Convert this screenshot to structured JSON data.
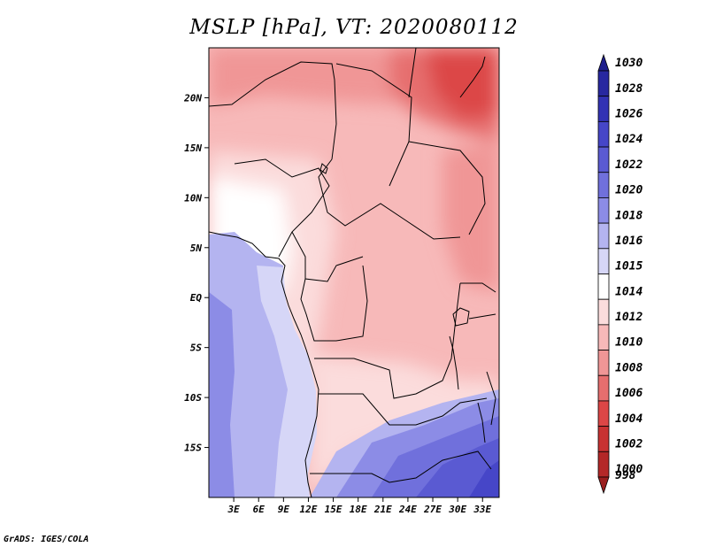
{
  "title": "MSLP [hPa], VT: 2020080112",
  "credit": "GrADS: IGES/COLA",
  "map": {
    "lon_range": [
      0,
      35
    ],
    "lat_range": [
      -20,
      25
    ],
    "x_ticks": [
      {
        "lon": 3,
        "label": "3E"
      },
      {
        "lon": 6,
        "label": "6E"
      },
      {
        "lon": 9,
        "label": "9E"
      },
      {
        "lon": 12,
        "label": "12E"
      },
      {
        "lon": 15,
        "label": "15E"
      },
      {
        "lon": 18,
        "label": "18E"
      },
      {
        "lon": 21,
        "label": "21E"
      },
      {
        "lon": 24,
        "label": "24E"
      },
      {
        "lon": 27,
        "label": "27E"
      },
      {
        "lon": 30,
        "label": "30E"
      },
      {
        "lon": 33,
        "label": "33E"
      }
    ],
    "y_ticks": [
      {
        "lat": 20,
        "label": "20N"
      },
      {
        "lat": 15,
        "label": "15N"
      },
      {
        "lat": 10,
        "label": "10N"
      },
      {
        "lat": 5,
        "label": "5N"
      },
      {
        "lat": 0,
        "label": "EQ"
      },
      {
        "lat": -5,
        "label": "5S"
      },
      {
        "lat": -10,
        "label": "10S"
      },
      {
        "lat": -15,
        "label": "15S"
      }
    ]
  },
  "colorbar": {
    "levels": [
      {
        "label": "1030",
        "color": "#1e1e8c"
      },
      {
        "label": "1028",
        "color": "#2828a0"
      },
      {
        "label": "1026",
        "color": "#3232b4"
      },
      {
        "label": "1024",
        "color": "#4646c8"
      },
      {
        "label": "1022",
        "color": "#5a5ad2"
      },
      {
        "label": "1020",
        "color": "#7070dc"
      },
      {
        "label": "1018",
        "color": "#8c8ce6"
      },
      {
        "label": "1016",
        "color": "#b4b4f0"
      },
      {
        "label": "1015",
        "color": "#d6d6f7"
      },
      {
        "label": "1014",
        "color": "#ffffff"
      },
      {
        "label": "1012",
        "color": "#fbdcdc"
      },
      {
        "label": "1010",
        "color": "#f7b9b9"
      },
      {
        "label": "1008",
        "color": "#f09696"
      },
      {
        "label": "1006",
        "color": "#e66e6e"
      },
      {
        "label": "1004",
        "color": "#dc4646"
      },
      {
        "label": "1002",
        "color": "#c83232"
      },
      {
        "label": "1000",
        "color": "#b42828"
      },
      {
        "label": "998",
        "color": "#9a1e1e"
      }
    ]
  }
}
